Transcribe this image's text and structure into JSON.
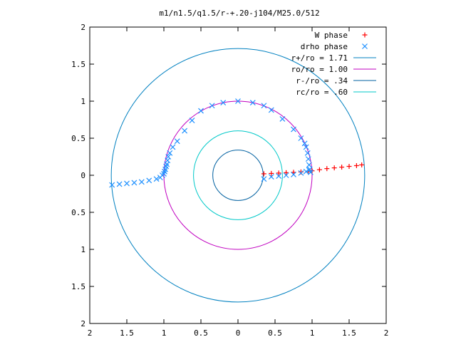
{
  "chart_data": {
    "type": "scatter",
    "title": "m1/n1.5/q1.5/r-+.20-j104/M25.0/512",
    "xlabel": "",
    "ylabel": "",
    "xlim": [
      -2,
      2
    ],
    "ylim": [
      -2,
      2
    ],
    "x_tick_values": [
      -2,
      -1.5,
      -1,
      -0.5,
      0,
      0.5,
      1,
      1.5,
      2
    ],
    "x_tick_labels": [
      "2",
      "1.5",
      "1",
      "0.5",
      "0",
      "0.5",
      "1",
      "1.5",
      "2"
    ],
    "y_tick_values": [
      2,
      1.5,
      1,
      0.5,
      0,
      -0.5,
      -1,
      -1.5,
      -2
    ],
    "y_tick_labels": [
      "2",
      "1.5",
      "1",
      "0.5",
      "0",
      "0.5",
      "1",
      "1.5",
      "2"
    ],
    "grid": false,
    "legend_position": "top-right",
    "circles": [
      {
        "name": "r+/ro = 1.71",
        "radius": 1.71,
        "color": "#0080c0"
      },
      {
        "name": "ro/ro = 1.00",
        "radius": 1.0,
        "color": "#c000c0"
      },
      {
        "name": "r-/ro = .34",
        "radius": 0.34,
        "color": "#0060a0"
      },
      {
        "name": "rc/ro = .60",
        "radius": 0.6,
        "color": "#00c8c8"
      }
    ],
    "series": [
      {
        "name": "W phase",
        "marker": "+",
        "color": "#ff0000",
        "x": [
          0.35,
          0.45,
          0.55,
          0.65,
          0.75,
          0.85,
          0.95,
          1.0,
          1.1,
          1.2,
          1.3,
          1.4,
          1.5,
          1.6,
          1.67
        ],
        "y": [
          0.02,
          0.025,
          0.03,
          0.035,
          0.04,
          0.045,
          0.05,
          0.06,
          0.075,
          0.09,
          0.1,
          0.11,
          0.12,
          0.13,
          0.14
        ]
      },
      {
        "name": "drho phase",
        "marker": "x",
        "color": "#1e90ff",
        "x": [
          -1.7,
          -1.6,
          -1.5,
          -1.4,
          -1.3,
          -1.2,
          -1.1,
          -1.05,
          -1.02,
          -1.0,
          -0.99,
          -0.98,
          -0.97,
          -0.96,
          -0.95,
          -0.94,
          -0.92,
          -0.88,
          -0.82,
          -0.72,
          -0.62,
          -0.5,
          -0.35,
          -0.2,
          0.0,
          0.2,
          0.35,
          0.45,
          0.6,
          0.75,
          0.85,
          0.9,
          0.92,
          0.94,
          0.95,
          0.96,
          0.97,
          0.98,
          0.35,
          0.45,
          0.55,
          0.65,
          0.75,
          0.85,
          0.92,
          0.96
        ],
        "y": [
          -0.13,
          -0.12,
          -0.11,
          -0.1,
          -0.09,
          -0.07,
          -0.05,
          -0.03,
          0.0,
          0.02,
          0.05,
          0.08,
          0.12,
          0.15,
          0.2,
          0.25,
          0.3,
          0.38,
          0.46,
          0.6,
          0.74,
          0.87,
          0.94,
          0.98,
          1.0,
          0.98,
          0.94,
          0.88,
          0.76,
          0.62,
          0.5,
          0.43,
          0.38,
          0.3,
          0.22,
          0.14,
          0.08,
          0.04,
          -0.05,
          -0.02,
          -0.01,
          0.0,
          0.01,
          0.03,
          0.05,
          0.07
        ]
      }
    ]
  }
}
